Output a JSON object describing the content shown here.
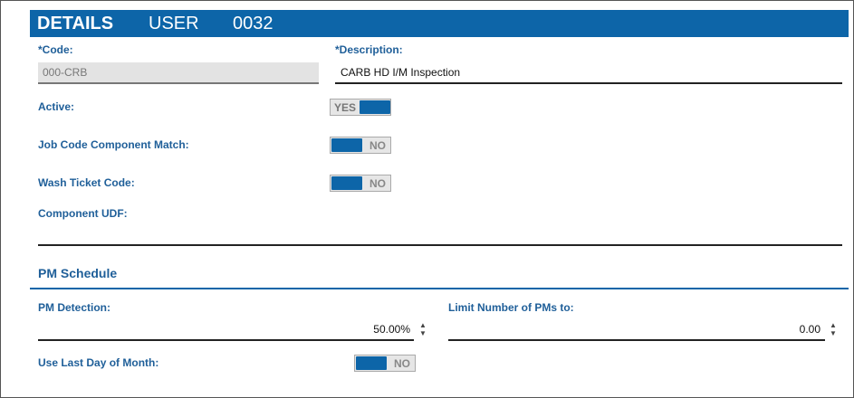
{
  "header": {
    "title": "DETAILS",
    "entity": "USER",
    "id": "0032"
  },
  "fields": {
    "code": {
      "label": "*Code:",
      "value": "000-CRB"
    },
    "description": {
      "label": "*Description:",
      "value": "CARB HD I/M Inspection"
    },
    "active": {
      "label": "Active:",
      "value": "YES"
    },
    "job_code_component_match": {
      "label": "Job Code Component Match:",
      "value": "NO"
    },
    "wash_ticket_code": {
      "label": "Wash Ticket Code:",
      "value": "NO"
    },
    "component_udf": {
      "label": "Component UDF:"
    }
  },
  "pm_schedule": {
    "title": "PM Schedule",
    "pm_detection": {
      "label": "PM Detection:",
      "value": "50.00%"
    },
    "limit_number": {
      "label": "Limit Number of PMs to:",
      "value": "0.00"
    },
    "use_last_day": {
      "label": "Use Last Day of Month:",
      "value": "NO"
    }
  }
}
